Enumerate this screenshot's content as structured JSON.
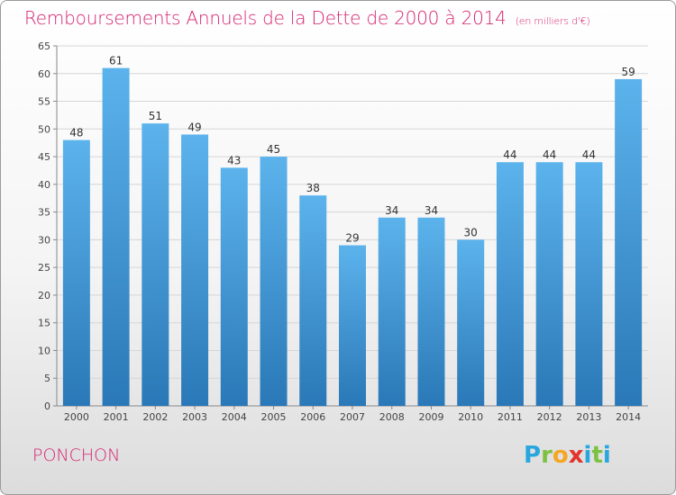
{
  "header": {
    "title": "Remboursements Annuels de la Dette de 2000 à 2014",
    "subtitle": "(en milliers d'€)"
  },
  "commune": "PONCHON",
  "logo": {
    "letters": [
      "P",
      "r",
      "o",
      "x",
      "i",
      "t",
      "i"
    ],
    "colors": [
      "#2aa6df",
      "#7dc142",
      "#f5a623",
      "#e2342b",
      "#2aa6df",
      "#7dc142",
      "#2aa6df"
    ]
  },
  "chart_data": {
    "type": "bar",
    "title": "Remboursements Annuels de la Dette de 2000 à 2014",
    "ylabel": "en milliers d'€",
    "xlabel": "",
    "categories": [
      "2000",
      "2001",
      "2002",
      "2003",
      "2004",
      "2005",
      "2006",
      "2007",
      "2008",
      "2009",
      "2010",
      "2011",
      "2012",
      "2013",
      "2014"
    ],
    "values": [
      48,
      61,
      51,
      49,
      43,
      45,
      38,
      29,
      34,
      34,
      30,
      44,
      44,
      44,
      59
    ],
    "ylim": [
      0,
      65
    ],
    "yticks": [
      0,
      5,
      10,
      15,
      20,
      25,
      30,
      35,
      40,
      45,
      50,
      55,
      60,
      65
    ],
    "grid": true,
    "bar_color_top": "#5cb3ec",
    "bar_color_bottom": "#2a78b7"
  }
}
